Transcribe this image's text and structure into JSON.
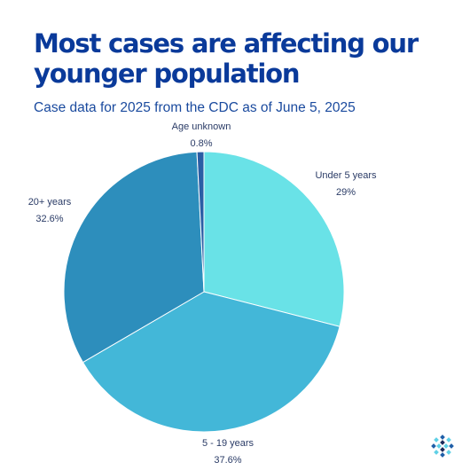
{
  "title": "Most cases are affecting our younger population",
  "subtitle": "Case data for 2025 from the CDC as of June 5, 2025",
  "chart_data": {
    "type": "pie",
    "slices": [
      {
        "label": "Under 5 years",
        "value": 29,
        "value_label": "29%",
        "color": "#69e2e7"
      },
      {
        "label": "5 - 19 years",
        "value": 37.6,
        "value_label": "37.6%",
        "color": "#43b7d8"
      },
      {
        "label": "20+ years",
        "value": 32.6,
        "value_label": "32.6%",
        "color": "#2d8ebc"
      },
      {
        "label": "Age unknown",
        "value": 0.8,
        "value_label": "0.8%",
        "color": "#2a5ea5"
      }
    ],
    "start_angle": "12 o'clock",
    "direction": "clockwise"
  },
  "logo": {
    "icon": "organization-logo-icon",
    "colors": [
      "#1f5fa8",
      "#5fd0e6",
      "#1a2a5a"
    ]
  }
}
